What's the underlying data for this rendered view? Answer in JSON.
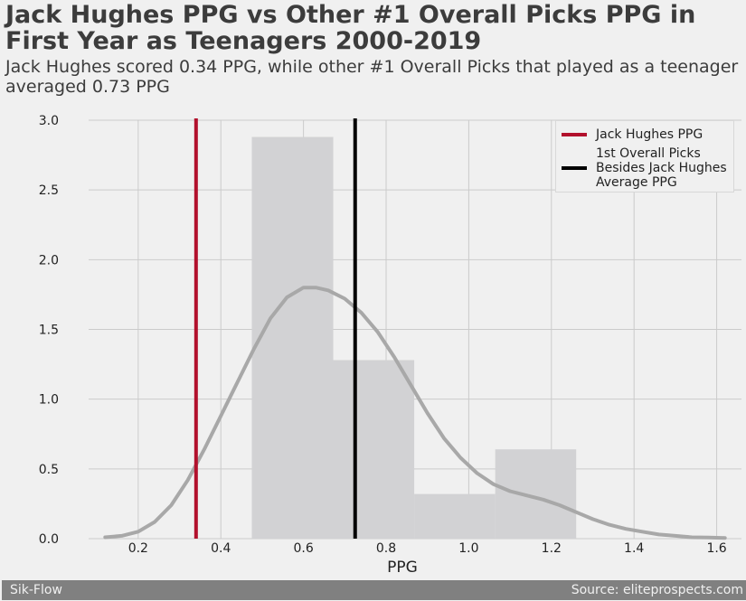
{
  "title": "Jack Hughes PPG vs Other #1 Overall Picks PPG in First Year as Teenagers 2000-2019",
  "subtitle": "Jack Hughes scored 0.34 PPG, while other #1 Overall Picks that played as a teenager averaged 0.73 PPG",
  "footer": {
    "left": "Sik-Flow",
    "right": "Source: eliteprospects.com"
  },
  "colors": {
    "background": "#f0f0f0",
    "hughes_line": "#b2102c",
    "average_line": "#000000",
    "kde": "#a8a8a8",
    "hist": "#d2d2d4",
    "grid": "#cbcbcb"
  },
  "chart_data": {
    "type": "histogram",
    "xlabel": "PPG",
    "ylabel": "",
    "xlim": [
      0.08,
      1.66
    ],
    "ylim": [
      0,
      3.0
    ],
    "xticks": [
      "0.2",
      "0.4",
      "0.6",
      "0.8",
      "1.0",
      "1.2",
      "1.4",
      "1.6"
    ],
    "yticks": [
      "0.0",
      "0.5",
      "1.0",
      "1.5",
      "2.0",
      "2.5",
      "3.0"
    ],
    "grid": true,
    "histogram": {
      "bins": [
        {
          "x0": 0.475,
          "x1": 0.672,
          "density": 2.88
        },
        {
          "x0": 0.672,
          "x1": 0.868,
          "density": 1.28
        },
        {
          "x0": 0.868,
          "x1": 1.064,
          "density": 0.32
        },
        {
          "x0": 1.064,
          "x1": 1.26,
          "density": 0.64
        }
      ]
    },
    "kde": {
      "x": [
        0.12,
        0.16,
        0.2,
        0.24,
        0.28,
        0.32,
        0.36,
        0.4,
        0.44,
        0.48,
        0.52,
        0.56,
        0.6,
        0.63,
        0.66,
        0.7,
        0.74,
        0.78,
        0.82,
        0.86,
        0.9,
        0.94,
        0.98,
        1.02,
        1.06,
        1.1,
        1.14,
        1.18,
        1.22,
        1.26,
        1.3,
        1.34,
        1.38,
        1.42,
        1.46,
        1.5,
        1.54,
        1.58,
        1.62
      ],
      "y": [
        0.01,
        0.02,
        0.05,
        0.12,
        0.24,
        0.42,
        0.64,
        0.88,
        1.12,
        1.36,
        1.58,
        1.73,
        1.8,
        1.8,
        1.78,
        1.72,
        1.62,
        1.48,
        1.3,
        1.1,
        0.9,
        0.72,
        0.58,
        0.47,
        0.39,
        0.34,
        0.31,
        0.28,
        0.24,
        0.19,
        0.14,
        0.1,
        0.07,
        0.05,
        0.03,
        0.02,
        0.01,
        0.008,
        0.005
      ]
    },
    "vlines": [
      {
        "name": "Jack Hughes PPG",
        "x": 0.34
      },
      {
        "name": "1st Overall Picks\nBesides Jack Hughes\nAverage PPG",
        "x": 0.725
      }
    ],
    "legend_position": "top-right"
  }
}
